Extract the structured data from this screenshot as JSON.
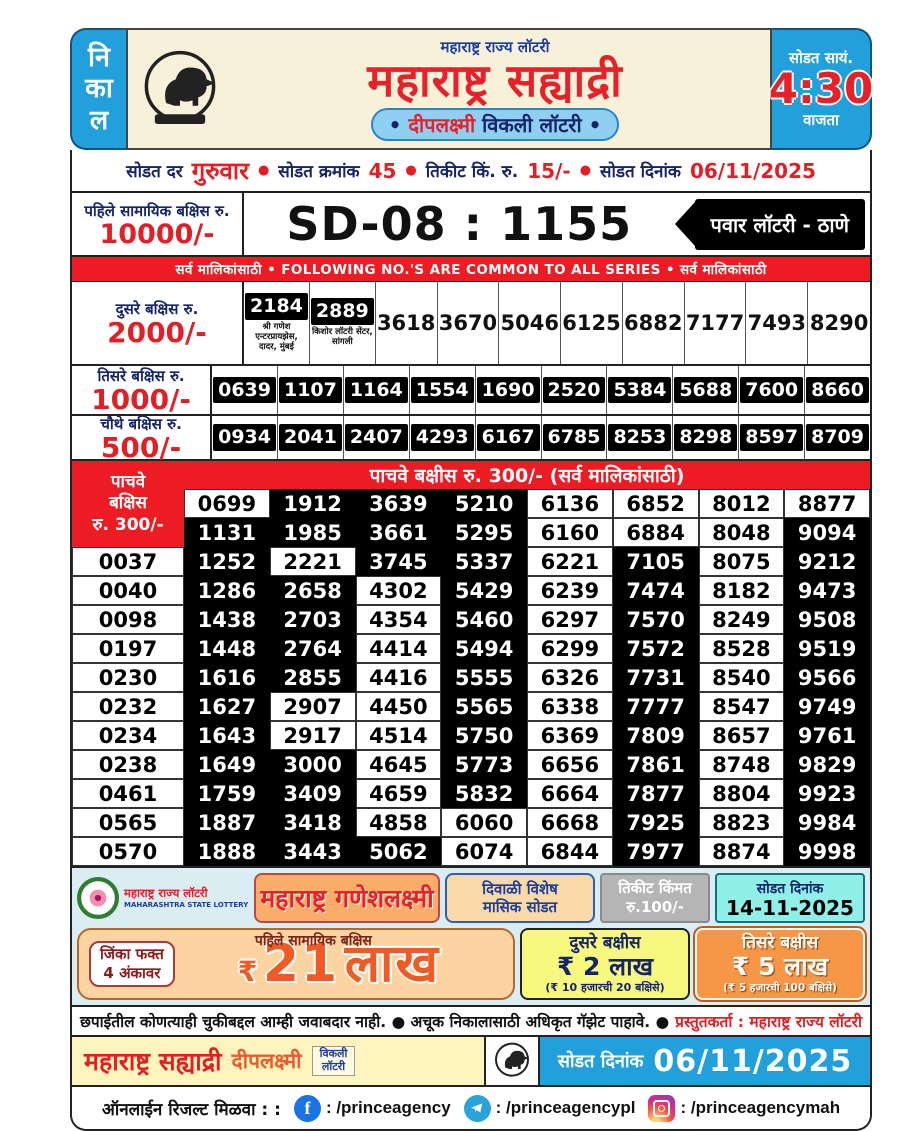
{
  "header": {
    "left_vertical": [
      "नि",
      "का",
      "ल"
    ],
    "small_title": "महाराष्ट्र राज्य लॉटरी",
    "main_title": "महाराष्ट्र सह्याद्री",
    "subtitle": {
      "b1": "•",
      "name": "दीपलक्ष्मी",
      "rest": "विकली लॉटरी",
      "b2": "•"
    },
    "time_top": "सोडत सायं.",
    "time": "4:30",
    "time_bottom": "वाजता"
  },
  "info_strip": {
    "bullet": "●",
    "day_label": "सोडत दर",
    "day": "गुरुवार",
    "draw_no_label": "सोडत क्रमांक",
    "draw_no": "45",
    "ticket_label": "तिकीट किं. रु.",
    "ticket_price": "15/-",
    "date_label": "सोडत दिनांक",
    "date": "06/11/2025"
  },
  "first_prize": {
    "label": "पहिले सामायिक बक्षिस रु.",
    "amount": "10000/-",
    "number": "SD-08 : 1155",
    "seller": "पवार लॉटरी - ठाणे"
  },
  "series_banner": "सर्व मालिकांसाठी  •  FOLLOWING NO.'S ARE COMMON TO ALL SERIES  •  सर्व मालिकांसाठी",
  "second_prize": {
    "label": "दुसरे बक्षिस रु.",
    "amount": "2000/-",
    "winners": [
      {
        "number": "2184",
        "seller": "श्री गणेश एन्टरप्रायझेस, दादर, मुंबई"
      },
      {
        "number": "2889",
        "seller": "किशोर लॉटरी सेंटर, सांगली"
      }
    ],
    "numbers": [
      "3618",
      "3670",
      "5046",
      "6125",
      "6882",
      "7177",
      "7493",
      "8290"
    ]
  },
  "third_prize": {
    "label": "तिसरे बक्षिस रु.",
    "amount": "1000/-",
    "numbers": [
      "0639",
      "1107",
      "1164",
      "1554",
      "1690",
      "2520",
      "5384",
      "5688",
      "7600",
      "8660"
    ]
  },
  "fourth_prize": {
    "label": "चौथे बक्षिस रु.",
    "amount": "500/-",
    "numbers": [
      "0934",
      "2041",
      "2407",
      "4293",
      "6167",
      "6785",
      "8253",
      "8298",
      "8597",
      "8709"
    ]
  },
  "fifth_prize": {
    "banner": "पाचवे बक्षीस रु. 300/- (सर्व मालिकांसाठी)",
    "sidebar": [
      "पाचवे",
      "बक्षिस",
      "रु. 300/-"
    ],
    "left_numbers": [
      "0037",
      "0040",
      "0098",
      "0197",
      "0230",
      "0232",
      "0234",
      "0238",
      "0461",
      "0565",
      "0570"
    ],
    "rows": [
      [
        [
          "0699",
          0
        ],
        [
          "1912",
          1
        ],
        [
          "3639",
          1
        ],
        [
          "5210",
          1
        ],
        [
          "6136",
          0
        ],
        [
          "6852",
          0
        ],
        [
          "8012",
          0
        ],
        [
          "8877",
          0
        ]
      ],
      [
        [
          "1131",
          1
        ],
        [
          "1985",
          1
        ],
        [
          "3661",
          1
        ],
        [
          "5295",
          1
        ],
        [
          "6160",
          0
        ],
        [
          "6884",
          0
        ],
        [
          "8048",
          0
        ],
        [
          "9094",
          1
        ]
      ],
      [
        [
          "1252",
          1
        ],
        [
          "2221",
          0
        ],
        [
          "3745",
          1
        ],
        [
          "5337",
          1
        ],
        [
          "6221",
          0
        ],
        [
          "7105",
          1
        ],
        [
          "8075",
          0
        ],
        [
          "9212",
          1
        ]
      ],
      [
        [
          "1286",
          1
        ],
        [
          "2658",
          1
        ],
        [
          "4302",
          0
        ],
        [
          "5429",
          1
        ],
        [
          "6239",
          0
        ],
        [
          "7474",
          1
        ],
        [
          "8182",
          0
        ],
        [
          "9473",
          1
        ]
      ],
      [
        [
          "1438",
          1
        ],
        [
          "2703",
          1
        ],
        [
          "4354",
          0
        ],
        [
          "5460",
          1
        ],
        [
          "6297",
          0
        ],
        [
          "7570",
          1
        ],
        [
          "8249",
          0
        ],
        [
          "9508",
          1
        ]
      ],
      [
        [
          "1448",
          1
        ],
        [
          "2764",
          1
        ],
        [
          "4414",
          0
        ],
        [
          "5494",
          1
        ],
        [
          "6299",
          0
        ],
        [
          "7572",
          1
        ],
        [
          "8528",
          0
        ],
        [
          "9519",
          1
        ]
      ],
      [
        [
          "1616",
          1
        ],
        [
          "2855",
          1
        ],
        [
          "4416",
          0
        ],
        [
          "5555",
          1
        ],
        [
          "6326",
          0
        ],
        [
          "7731",
          1
        ],
        [
          "8540",
          0
        ],
        [
          "9566",
          1
        ]
      ],
      [
        [
          "1627",
          1
        ],
        [
          "2907",
          0
        ],
        [
          "4450",
          0
        ],
        [
          "5565",
          1
        ],
        [
          "6338",
          0
        ],
        [
          "7777",
          1
        ],
        [
          "8547",
          0
        ],
        [
          "9749",
          1
        ]
      ],
      [
        [
          "1643",
          1
        ],
        [
          "2917",
          0
        ],
        [
          "4514",
          0
        ],
        [
          "5750",
          1
        ],
        [
          "6369",
          0
        ],
        [
          "7809",
          1
        ],
        [
          "8657",
          0
        ],
        [
          "9761",
          1
        ]
      ],
      [
        [
          "1649",
          1
        ],
        [
          "3000",
          1
        ],
        [
          "4645",
          0
        ],
        [
          "5773",
          1
        ],
        [
          "6656",
          0
        ],
        [
          "7861",
          1
        ],
        [
          "8748",
          0
        ],
        [
          "9829",
          1
        ]
      ],
      [
        [
          "1759",
          1
        ],
        [
          "3409",
          1
        ],
        [
          "4659",
          0
        ],
        [
          "5832",
          1
        ],
        [
          "6664",
          0
        ],
        [
          "7877",
          1
        ],
        [
          "8804",
          0
        ],
        [
          "9923",
          1
        ]
      ],
      [
        [
          "1887",
          1
        ],
        [
          "3418",
          1
        ],
        [
          "4858",
          0
        ],
        [
          "6060",
          0
        ],
        [
          "6668",
          0
        ],
        [
          "7925",
          1
        ],
        [
          "8823",
          0
        ],
        [
          "9984",
          1
        ]
      ],
      [
        [
          "1888",
          1
        ],
        [
          "3443",
          1
        ],
        [
          "5062",
          1
        ],
        [
          "6074",
          0
        ],
        [
          "6844",
          0
        ],
        [
          "7977",
          1
        ],
        [
          "8874",
          0
        ],
        [
          "9998",
          1
        ]
      ]
    ]
  },
  "promo": {
    "org_name_mr": "महाराष्ट्र राज्य लॉटरी",
    "org_name_en": "MAHARASHTRA STATE LOTTERY",
    "scheme": "महाराष्ट्र गणेशलक्ष्मी",
    "special_line1": "दिवाळी विशेष",
    "special_line2": "मासिक सोडत",
    "ticket_label": "तिकीट किंमत",
    "ticket_price": "रु.100/-",
    "draw_date_label": "सोडत दिनांक",
    "draw_date": "14-11-2025",
    "win_line1": "जिंका फक्त",
    "win_line2": "4 अंकावर",
    "first_prize_note": "पहिले सामायिक बक्षिस",
    "jackpot": {
      "currency": "₹",
      "value": "21",
      "unit": "लाख"
    },
    "second": {
      "title": "दुसरे बक्षीस",
      "amount": "₹ 2 लाख",
      "note": "(₹ 10 हजारची 20 बक्षिसे)"
    },
    "third": {
      "title": "तिसरे बक्षीस",
      "amount": "₹ 5 लाख",
      "note": "(₹ 5 हजारची 100 बक्षिसे)"
    }
  },
  "disclaimer": {
    "black": "छपाईतील कोणत्याही चुकीबद्दल आम्ही जवाबदार नाही.  ● अचूक निकालासाठी अधिकृत गॅझेट पाहावे. ●",
    "red": "प्रस्तुतकर्ता : महाराष्ट्र राज्य लॉटरी"
  },
  "footer": {
    "title1": "महाराष्ट्र सह्याद्री",
    "title2": "दीपलक्ष्मी",
    "weekly_line1": "विकली",
    "weekly_line2": "लॉटरी",
    "date_label": "सोडत दिनांक",
    "date": "06/11/2025"
  },
  "social": {
    "label": "ऑनलाईन रिजल्ट मिळवा : :",
    "facebook": ": /princeagency",
    "telegram": ": /princeagencypl",
    "instagram": ": /princeagencymah",
    "fb_glyph": "f"
  },
  "colors": {
    "accent_blue": "#21a0dc",
    "accent_red": "#e31e25",
    "banner_red": "#ed1c24",
    "navy": "#15246b",
    "cream": "#f8f1da"
  }
}
